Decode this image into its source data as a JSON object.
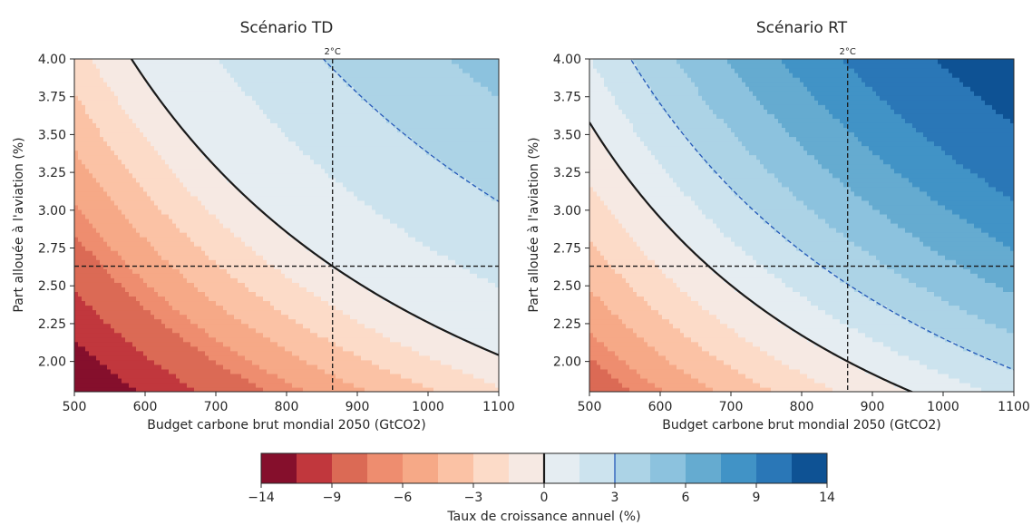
{
  "chart_data": [
    {
      "type": "heatmap",
      "title": "Scénario TD",
      "xlabel": "Budget carbone brut mondial 2050 (GtCO2)",
      "ylabel": "Part allouée à l'aviation (%)",
      "xlim": [
        500,
        1100
      ],
      "ylim": [
        1.8,
        4.0
      ],
      "x_ticks": [
        "500",
        "600",
        "700",
        "800",
        "900",
        "1000",
        "1100"
      ],
      "y_ticks": [
        "2.00",
        "2.25",
        "2.50",
        "2.75",
        "3.00",
        "3.25",
        "3.50",
        "3.75",
        "4.00"
      ],
      "reference_x": 865,
      "reference_x_label": "2°C",
      "reference_y": 2.63,
      "zero_growth_contour": [
        [
          580,
          4.0
        ],
        [
          865,
          2.63
        ],
        [
          1100,
          2.04
        ]
      ],
      "three_percent_contour": [
        [
          790,
          4.0
        ],
        [
          865,
          3.65
        ],
        [
          1100,
          2.85
        ]
      ],
      "corner_values": {
        "bottom_left": -13.5,
        "top_right": 5
      }
    },
    {
      "type": "heatmap",
      "title": "Scénario RT",
      "xlabel": "Budget carbone brut mondial 2050 (GtCO2)",
      "ylabel": "Part allouée à l'aviation (%)",
      "xlim": [
        500,
        1100
      ],
      "ylim": [
        1.8,
        4.0
      ],
      "x_ticks": [
        "500",
        "600",
        "700",
        "800",
        "900",
        "1000",
        "1100"
      ],
      "y_ticks": [
        "2.00",
        "2.25",
        "2.50",
        "2.75",
        "3.00",
        "3.25",
        "3.50",
        "3.75",
        "4.00"
      ],
      "reference_x": 865,
      "reference_x_label": "2°C",
      "reference_y": 2.63,
      "zero_growth_contour": [
        [
          500,
          3.6
        ],
        [
          675,
          2.63
        ],
        [
          865,
          2.0
        ],
        [
          960,
          1.8
        ]
      ],
      "three_percent_contour": [
        [
          575,
          4.0
        ],
        [
          865,
          2.63
        ],
        [
          1100,
          2.07
        ]
      ],
      "corner_values": {
        "bottom_left": -8.5,
        "top_right": 12.5
      }
    }
  ],
  "colorbar": {
    "label": "Taux de croissance annuel (%)",
    "tick_labels": [
      "−14",
      "−9",
      "−6",
      "−3",
      "0",
      "3",
      "6",
      "9",
      "14"
    ],
    "levels": [
      -14,
      -11,
      -9,
      -7,
      -6,
      -4.5,
      -3,
      -1.5,
      0,
      1.5,
      3,
      4.5,
      6,
      7.5,
      9,
      11,
      14
    ],
    "colors": [
      "#850f2c",
      "#c1373d",
      "#db6a55",
      "#ee8d6f",
      "#f6a987",
      "#fbc2a5",
      "#fcdbc8",
      "#f6e9e3",
      "#e5edf2",
      "#cce3ee",
      "#acd3e6",
      "#8cc2de",
      "#65abd0",
      "#4193c6",
      "#2a77b7",
      "#0e5294"
    ],
    "colors_note": "interval fill colors"
  }
}
